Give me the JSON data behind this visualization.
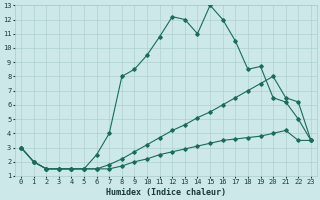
{
  "xlabel": "Humidex (Indice chaleur)",
  "bg_color": "#cce8e8",
  "grid_color": "#b0d0d0",
  "line_color": "#1a6b5a",
  "xlim": [
    -0.5,
    23.5
  ],
  "ylim": [
    1,
    13
  ],
  "xticks": [
    0,
    1,
    2,
    3,
    4,
    5,
    6,
    7,
    8,
    9,
    10,
    11,
    12,
    13,
    14,
    15,
    16,
    17,
    18,
    19,
    20,
    21,
    22,
    23
  ],
  "yticks": [
    1,
    2,
    3,
    4,
    5,
    6,
    7,
    8,
    9,
    10,
    11,
    12,
    13
  ],
  "line1_x": [
    0,
    1,
    2,
    3,
    4,
    5,
    6,
    7,
    8,
    9,
    10,
    11,
    12,
    13,
    14,
    15,
    16,
    17,
    18,
    19,
    20,
    21,
    22,
    23
  ],
  "line1_y": [
    3,
    2,
    1.5,
    1.5,
    1.5,
    1.5,
    2.5,
    4,
    8,
    8.5,
    9.5,
    10.8,
    12.2,
    12,
    11,
    13,
    12,
    10.5,
    8.5,
    8.7,
    6.5,
    6.2,
    5,
    3.5
  ],
  "line2_x": [
    0,
    1,
    2,
    3,
    4,
    5,
    6,
    7,
    8,
    9,
    10,
    11,
    12,
    13,
    14,
    15,
    16,
    17,
    18,
    19,
    20,
    21,
    22,
    23
  ],
  "line2_y": [
    3,
    2,
    1.5,
    1.5,
    1.5,
    1.5,
    1.5,
    1.8,
    2.2,
    2.7,
    3.2,
    3.7,
    4.2,
    4.6,
    5.1,
    5.5,
    6.0,
    6.5,
    7.0,
    7.5,
    8.0,
    6.5,
    6.2,
    3.5
  ],
  "line3_x": [
    0,
    1,
    2,
    3,
    4,
    5,
    6,
    7,
    8,
    9,
    10,
    11,
    12,
    13,
    14,
    15,
    16,
    17,
    18,
    19,
    20,
    21,
    22,
    23
  ],
  "line3_y": [
    3,
    2,
    1.5,
    1.5,
    1.5,
    1.5,
    1.5,
    1.5,
    1.7,
    2.0,
    2.2,
    2.5,
    2.7,
    2.9,
    3.1,
    3.3,
    3.5,
    3.6,
    3.7,
    3.8,
    4.0,
    4.2,
    3.5,
    3.5
  ]
}
